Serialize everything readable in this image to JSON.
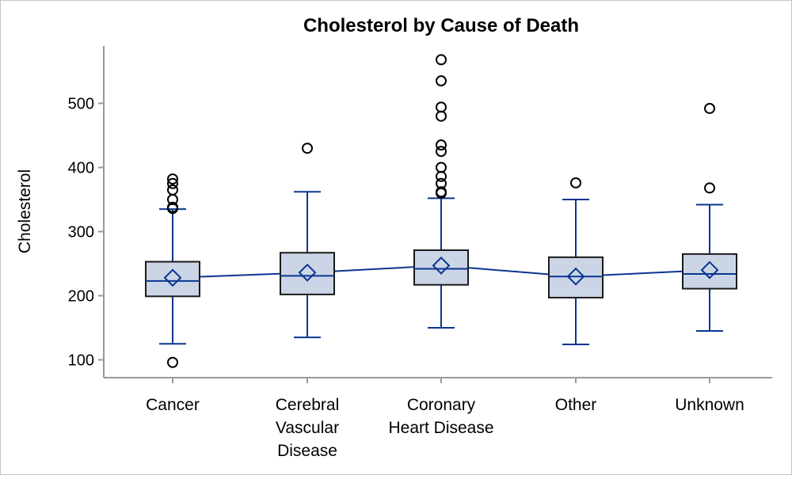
{
  "chart_data": {
    "type": "box",
    "title": "Cholesterol by Cause of Death",
    "xlabel": "",
    "ylabel": "Cholesterol",
    "ylim": [
      70,
      590
    ],
    "yticks": [
      100,
      200,
      300,
      400,
      500
    ],
    "grid": false,
    "categories": [
      {
        "label": [
          "Cancer"
        ]
      },
      {
        "label": [
          "Cerebral",
          "Vascular",
          "Disease"
        ]
      },
      {
        "label": [
          "Coronary",
          "Heart Disease"
        ]
      },
      {
        "label": [
          "Other"
        ]
      },
      {
        "label": [
          "Unknown"
        ]
      }
    ],
    "boxes": [
      {
        "whisker_low": 125,
        "q1": 199,
        "median": 223,
        "q3": 253,
        "whisker_high": 335,
        "mean": 228,
        "outliers": [
          96,
          336,
          338,
          350,
          365,
          375,
          382
        ]
      },
      {
        "whisker_low": 135,
        "q1": 202,
        "median": 231,
        "q3": 267,
        "whisker_high": 362,
        "mean": 236,
        "outliers": [
          430
        ]
      },
      {
        "whisker_low": 150,
        "q1": 217,
        "median": 242,
        "q3": 271,
        "whisker_high": 352,
        "mean": 247,
        "outliers": [
          360,
          362,
          375,
          386,
          400,
          425,
          435,
          480,
          494,
          535,
          568
        ]
      },
      {
        "whisker_low": 124,
        "q1": 197,
        "median": 230,
        "q3": 260,
        "whisker_high": 350,
        "mean": 230,
        "outliers": [
          376
        ]
      },
      {
        "whisker_low": 145,
        "q1": 211,
        "median": 234,
        "q3": 265,
        "whisker_high": 342,
        "mean": 240,
        "outliers": [
          368,
          492
        ]
      }
    ],
    "colors": {
      "box_fill": "#cbd5e6",
      "box_stroke": "#1a1a1a",
      "line": "#0a3590",
      "outlier": "#000000",
      "axis": "#9a9a9a",
      "frame": "#c4c4c4"
    }
  }
}
